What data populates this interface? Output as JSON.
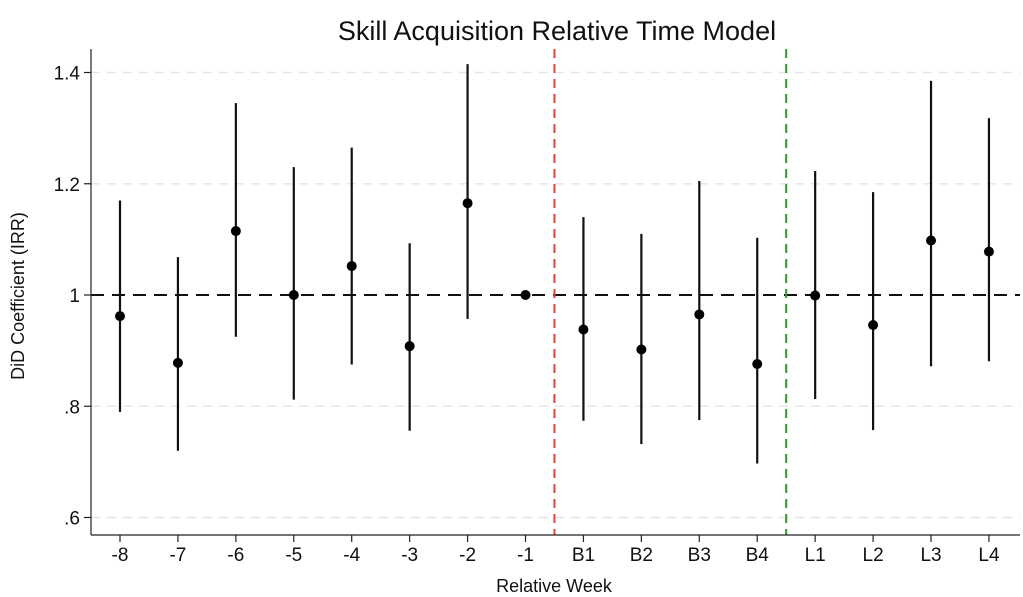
{
  "chart_data": {
    "type": "scatter",
    "title": "Skill Acquisition Relative Time Model",
    "xlabel": "Relative Week",
    "ylabel": "DiD Coefficient (IRR)",
    "categories": [
      "-8",
      "-7",
      "-6",
      "-5",
      "-4",
      "-3",
      "-2",
      "-1",
      "B1",
      "B2",
      "B3",
      "B4",
      "L1",
      "L2",
      "L3",
      "L4"
    ],
    "series": [
      {
        "values": [
          0.962,
          0.878,
          1.115,
          1.0,
          1.052,
          0.908,
          1.165,
          1.0,
          0.938,
          0.902,
          0.965,
          0.876,
          0.999,
          0.946,
          1.098,
          1.078
        ],
        "ci_low": [
          0.79,
          0.72,
          0.925,
          0.812,
          0.875,
          0.756,
          0.957,
          1.0,
          0.774,
          0.732,
          0.775,
          0.697,
          0.813,
          0.757,
          0.872,
          0.881
        ],
        "ci_high": [
          1.17,
          1.068,
          1.345,
          1.23,
          1.265,
          1.093,
          1.415,
          1.0,
          1.14,
          1.11,
          1.205,
          1.103,
          1.223,
          1.185,
          1.385,
          1.318
        ]
      }
    ],
    "yticks": [
      0.6,
      0.8,
      1.0,
      1.2,
      1.4
    ],
    "ytick_labels": [
      ".6",
      ".8",
      "1",
      "1.2",
      "1.4"
    ],
    "ylim": [
      0.58,
      1.44
    ],
    "grid": true,
    "reference_line_y": 1.0,
    "vertical_markers": [
      {
        "between": [
          "-1",
          "B1"
        ],
        "color": "#e8403a"
      },
      {
        "between": [
          "B4",
          "L1"
        ],
        "color": "#2e9a2e"
      }
    ]
  }
}
